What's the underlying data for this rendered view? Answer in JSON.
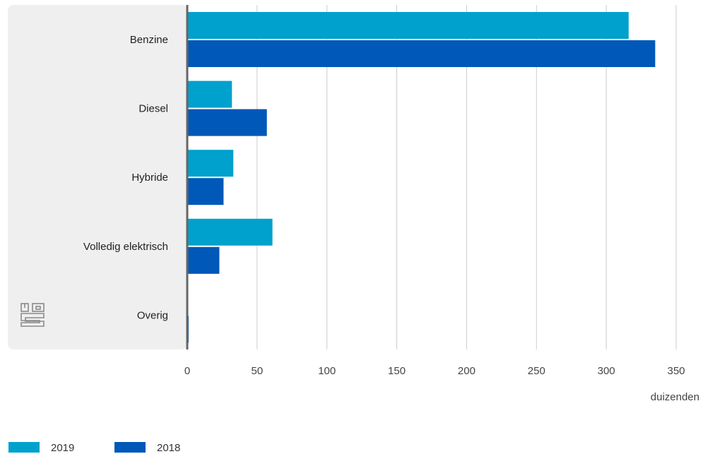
{
  "chart_data": {
    "type": "bar",
    "orientation": "horizontal",
    "categories": [
      "Benzine",
      "Diesel",
      "Hybride",
      "Volledig elektrisch",
      "Overig"
    ],
    "series": [
      {
        "name": "2019",
        "color": "#00a1cd",
        "values": [
          316,
          32,
          33,
          61,
          0.3
        ]
      },
      {
        "name": "2018",
        "color": "#0058b8",
        "values": [
          335,
          57,
          26,
          23,
          1
        ]
      }
    ],
    "xlim": [
      0,
      350
    ],
    "xticks": [
      0,
      50,
      100,
      150,
      200,
      250,
      300,
      350
    ],
    "xunit": "duizenden",
    "grid": true,
    "legend_position": "bottom-left",
    "logo": "cbs-logo-icon"
  }
}
